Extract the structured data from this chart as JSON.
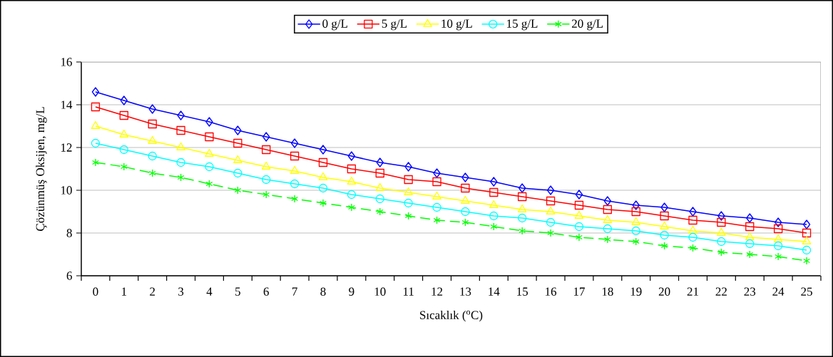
{
  "chart_data": {
    "type": "line",
    "xlabel": "Sıcaklık ($^{o}$C)",
    "ylabel": "Çözünmüş Oksijen, mg/L",
    "categories": [
      "0",
      "1",
      "2",
      "3",
      "4",
      "5",
      "6",
      "7",
      "8",
      "9",
      "10",
      "11",
      "12",
      "13",
      "14",
      "15",
      "16",
      "17",
      "18",
      "19",
      "20",
      "21",
      "22",
      "23",
      "24",
      "25"
    ],
    "ylim": [
      6,
      16
    ],
    "yticks": [
      6,
      8,
      10,
      12,
      14,
      16
    ],
    "grid": "y",
    "legend": "top",
    "series": [
      {
        "name": "0 g/L",
        "color": "#0000ff",
        "marker": "diamond",
        "line_style": "solid",
        "values": [
          14.6,
          14.2,
          13.8,
          13.5,
          13.2,
          12.8,
          12.5,
          12.2,
          11.9,
          11.6,
          11.3,
          11.1,
          10.8,
          10.6,
          10.4,
          10.1,
          10.0,
          9.8,
          9.5,
          9.3,
          9.2,
          9.0,
          8.8,
          8.7,
          8.5,
          8.4
        ]
      },
      {
        "name": "5 g/L",
        "color": "#ff0000",
        "marker": "square",
        "line_style": "solid",
        "values": [
          13.9,
          13.5,
          13.1,
          12.8,
          12.5,
          12.2,
          11.9,
          11.6,
          11.3,
          11.0,
          10.8,
          10.5,
          10.4,
          10.1,
          9.9,
          9.7,
          9.5,
          9.3,
          9.1,
          9.0,
          8.8,
          8.6,
          8.5,
          8.3,
          8.2,
          8.0
        ]
      },
      {
        "name": "10 g/L",
        "color": "#ffff00",
        "marker": "triangle",
        "line_style": "solid",
        "values": [
          13.0,
          12.6,
          12.3,
          12.0,
          11.7,
          11.4,
          11.1,
          10.9,
          10.6,
          10.4,
          10.1,
          9.9,
          9.7,
          9.5,
          9.3,
          9.1,
          9.0,
          8.8,
          8.6,
          8.5,
          8.3,
          8.1,
          8.0,
          7.8,
          7.7,
          7.6
        ]
      },
      {
        "name": "15 g/L",
        "color": "#00ffff",
        "marker": "circle",
        "line_style": "solid",
        "values": [
          12.2,
          11.9,
          11.6,
          11.3,
          11.1,
          10.8,
          10.5,
          10.3,
          10.1,
          9.8,
          9.6,
          9.4,
          9.2,
          9.0,
          8.8,
          8.7,
          8.5,
          8.3,
          8.2,
          8.1,
          7.9,
          7.8,
          7.6,
          7.5,
          7.4,
          7.2
        ]
      },
      {
        "name": "20 g/L",
        "color": "#00ff00",
        "marker": "cross",
        "line_style": "dashed",
        "values": [
          11.3,
          11.1,
          10.8,
          10.6,
          10.3,
          10.0,
          9.8,
          9.6,
          9.4,
          9.2,
          9.0,
          8.8,
          8.6,
          8.5,
          8.3,
          8.1,
          8.0,
          7.8,
          7.7,
          7.6,
          7.4,
          7.3,
          7.1,
          7.0,
          6.9,
          6.7
        ]
      }
    ]
  }
}
